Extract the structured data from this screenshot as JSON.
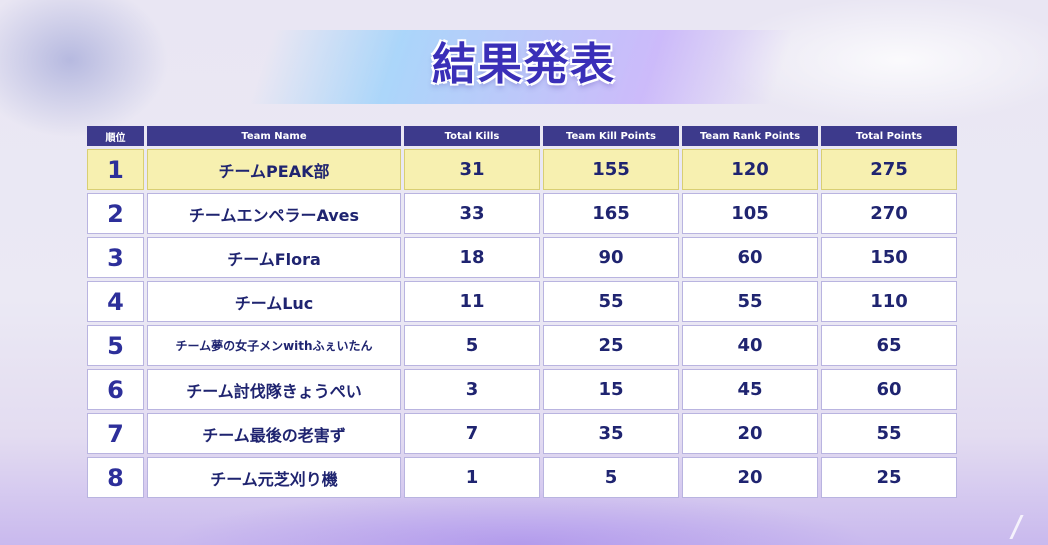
{
  "title": "結果発表",
  "table": {
    "headers": [
      "順位",
      "Team Name",
      "Total Kills",
      "Team Kill Points",
      "Team Rank Points",
      "Total Points"
    ],
    "rows": [
      {
        "rank": "1",
        "team": "チームPEAK部",
        "kills": "31",
        "kill_points": "155",
        "rank_points": "120",
        "total": "275"
      },
      {
        "rank": "2",
        "team": "チームエンペラーAves",
        "kills": "33",
        "kill_points": "165",
        "rank_points": "105",
        "total": "270"
      },
      {
        "rank": "3",
        "team": "チームFlora",
        "kills": "18",
        "kill_points": "90",
        "rank_points": "60",
        "total": "150"
      },
      {
        "rank": "4",
        "team": "チームLuc",
        "kills": "11",
        "kill_points": "55",
        "rank_points": "55",
        "total": "110"
      },
      {
        "rank": "5",
        "team": "チーム夢の女子メンwithふぇいたん",
        "kills": "5",
        "kill_points": "25",
        "rank_points": "40",
        "total": "65"
      },
      {
        "rank": "6",
        "team": "チーム討伐隊きょうぺい",
        "kills": "3",
        "kill_points": "15",
        "rank_points": "45",
        "total": "60"
      },
      {
        "rank": "7",
        "team": "チーム最後の老害ず",
        "kills": "7",
        "kill_points": "35",
        "rank_points": "20",
        "total": "55"
      },
      {
        "rank": "8",
        "team": "チーム元芝刈り機",
        "kills": "1",
        "kill_points": "5",
        "rank_points": "20",
        "total": "25"
      }
    ]
  },
  "colors": {
    "header_bg": "#3d3a8c",
    "first_place_bg": "#f7f0b0",
    "text": "#1f2470",
    "title": "#3a2fb8"
  }
}
